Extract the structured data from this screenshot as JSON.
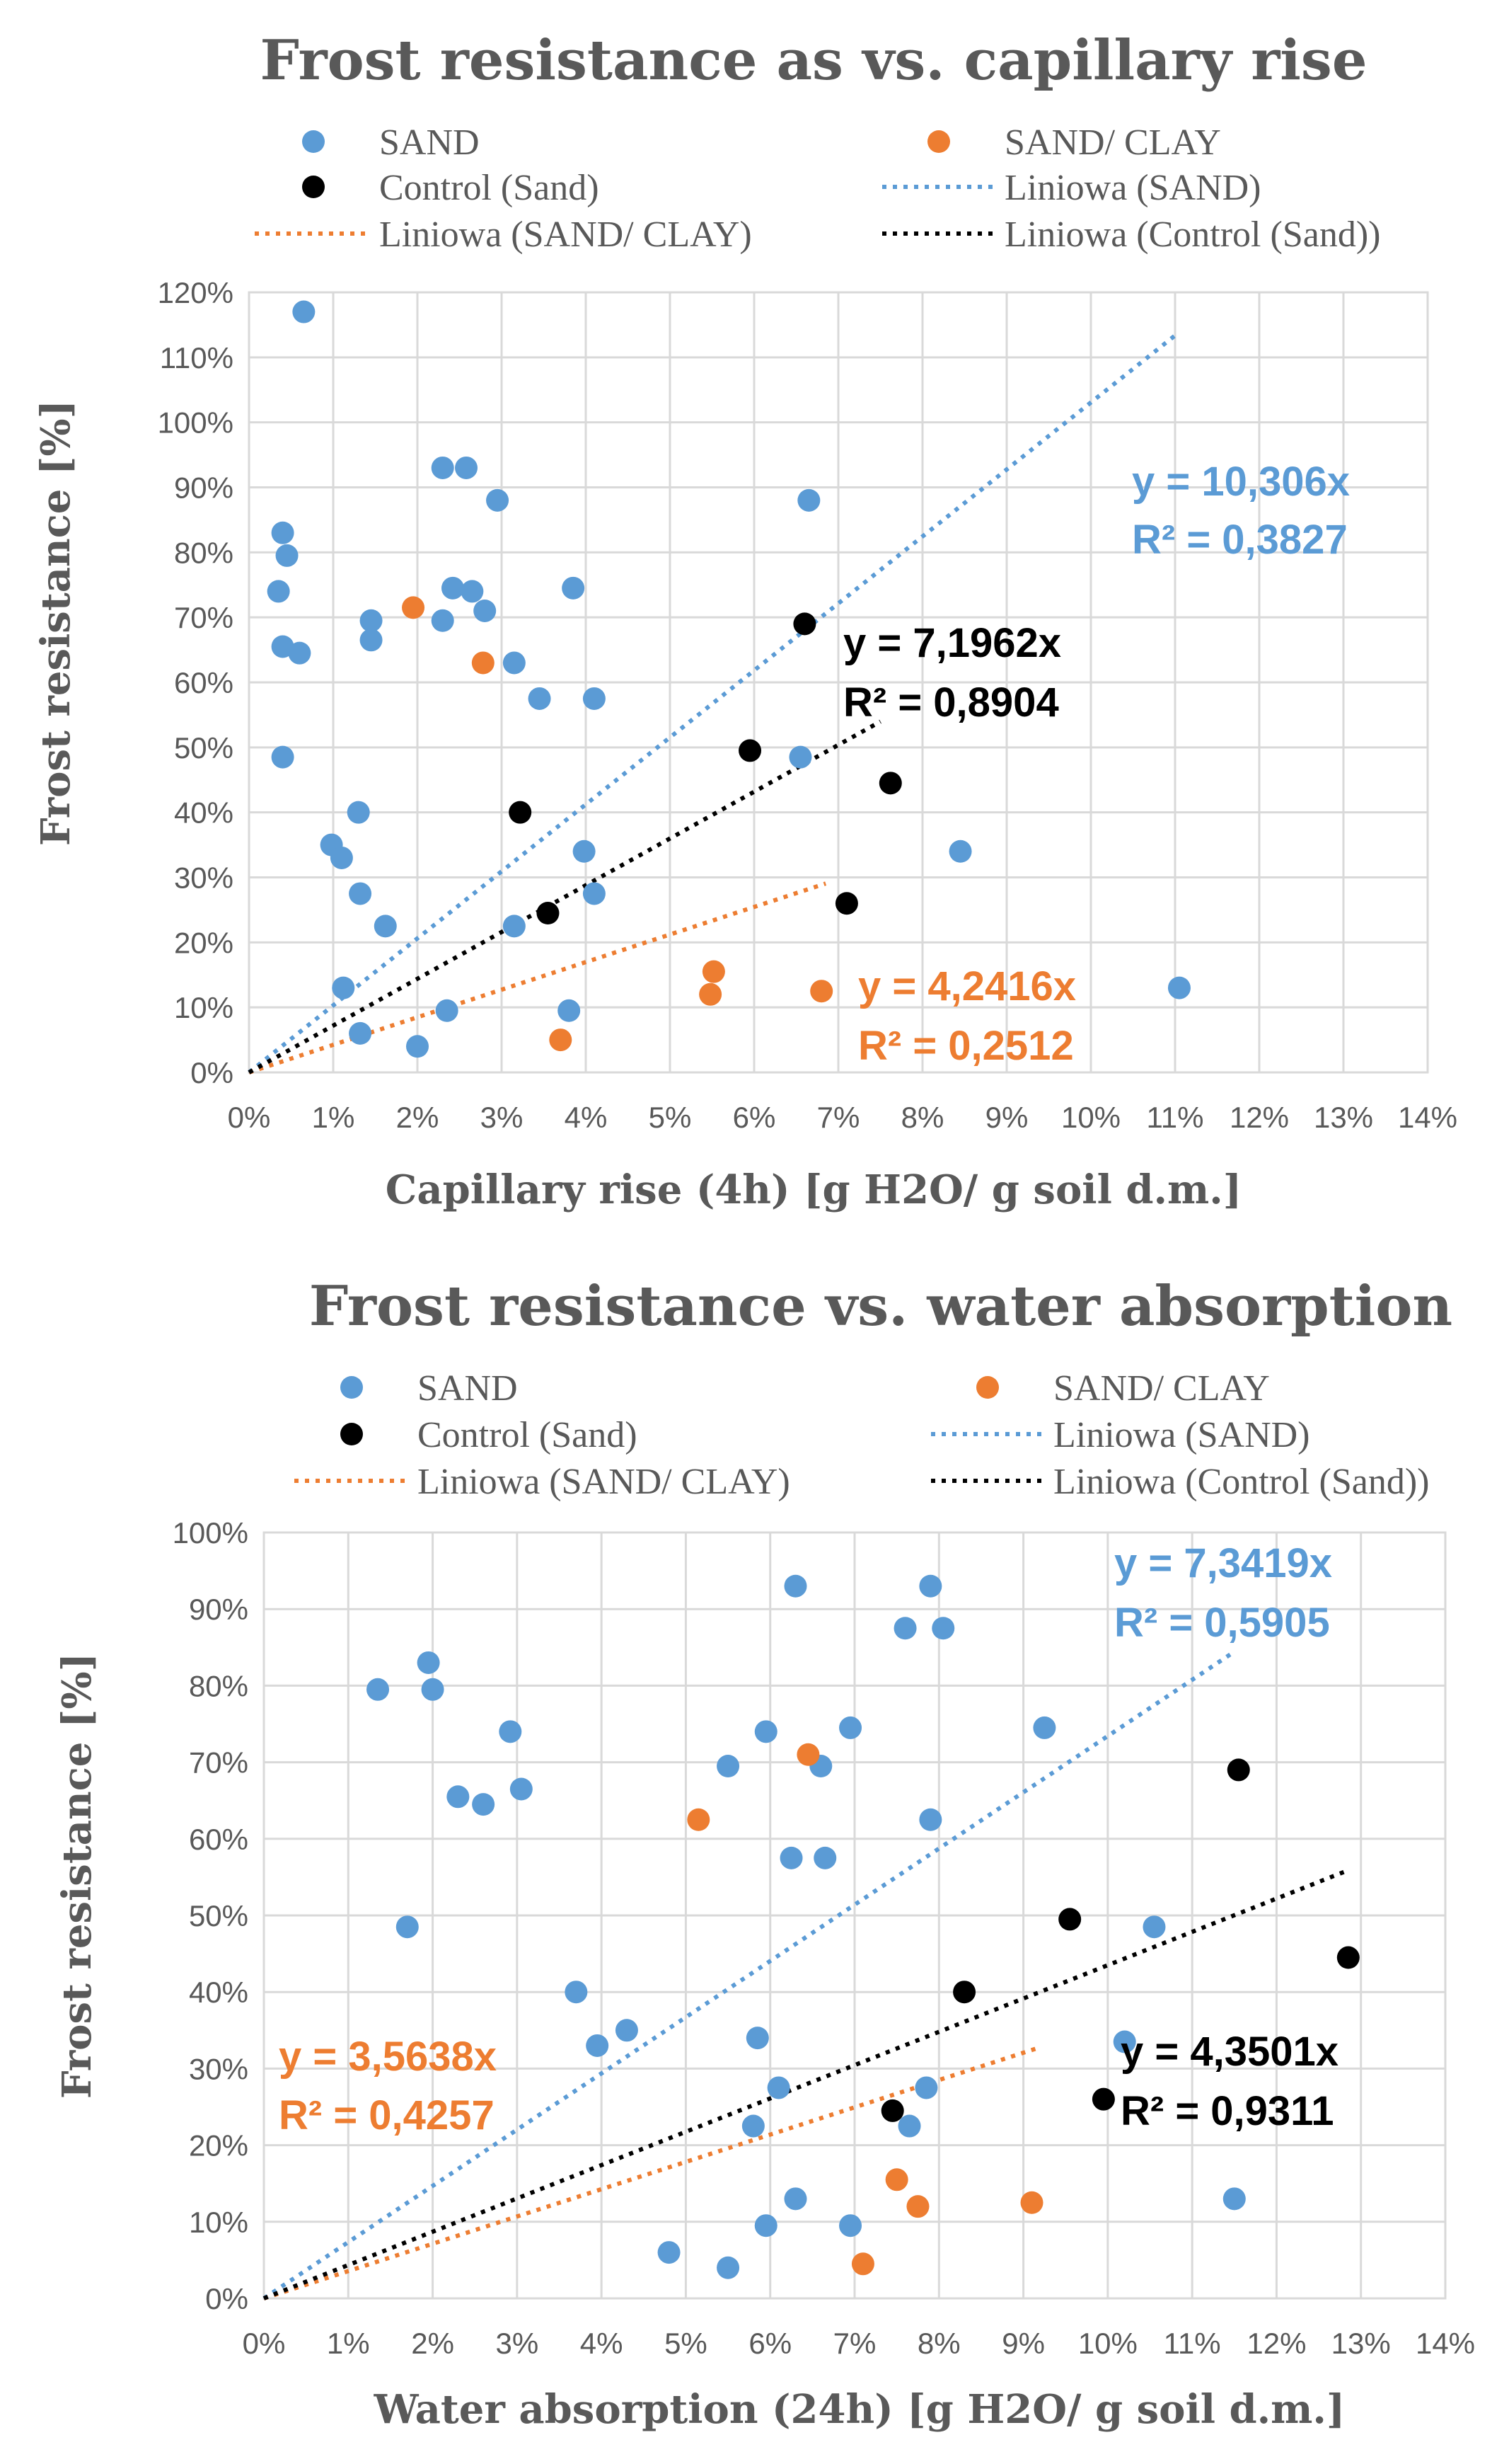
{
  "chart_data": [
    {
      "type": "scatter",
      "title": "Frost resistance as vs. capillary rise",
      "xlabel": "Capillary rise (4h) [g H2O/ g soil d.m.]",
      "ylabel": "Frost resistance [%]",
      "xlim": [
        0,
        14
      ],
      "ylim": [
        0,
        120
      ],
      "x_ticks": [
        "0%",
        "1%",
        "2%",
        "3%",
        "4%",
        "5%",
        "6%",
        "7%",
        "8%",
        "9%",
        "10%",
        "11%",
        "12%",
        "13%",
        "14%"
      ],
      "y_ticks": [
        "0%",
        "10%",
        "20%",
        "30%",
        "40%",
        "50%",
        "60%",
        "70%",
        "80%",
        "90%",
        "100%",
        "110%",
        "120%"
      ],
      "grid": true,
      "legend": [
        {
          "label": "SAND",
          "kind": "marker",
          "color": "#5b9bd5"
        },
        {
          "label": "SAND/ CLAY",
          "kind": "marker",
          "color": "#ed7d31"
        },
        {
          "label": "Control (Sand)",
          "kind": "marker",
          "color": "#000000"
        },
        {
          "label": "Liniowa (SAND)",
          "kind": "line",
          "color": "#5b9bd5"
        },
        {
          "label": "Liniowa (SAND/ CLAY)",
          "kind": "line",
          "color": "#ed7d31"
        },
        {
          "label": "Liniowa (Control (Sand))",
          "kind": "line",
          "color": "#000000"
        }
      ],
      "series": [
        {
          "name": "SAND",
          "color": "#5b9bd5",
          "points": [
            [
              0.65,
              117
            ],
            [
              0.4,
              83
            ],
            [
              0.45,
              79.5
            ],
            [
              0.35,
              74
            ],
            [
              0.4,
              65.5
            ],
            [
              0.6,
              64.5
            ],
            [
              0.4,
              48.5
            ],
            [
              1.45,
              69.5
            ],
            [
              1.45,
              66.5
            ],
            [
              1.3,
              40
            ],
            [
              0.98,
              35
            ],
            [
              1.1,
              33
            ],
            [
              1.32,
              27.5
            ],
            [
              1.62,
              22.5
            ],
            [
              1.12,
              13
            ],
            [
              1.32,
              6
            ],
            [
              2.3,
              93
            ],
            [
              2.58,
              93
            ],
            [
              2.95,
              88
            ],
            [
              2.42,
              74.5
            ],
            [
              2.65,
              74
            ],
            [
              2.8,
              71
            ],
            [
              2.3,
              69.5
            ],
            [
              3.15,
              63
            ],
            [
              3.45,
              57.5
            ],
            [
              3.85,
              74.5
            ],
            [
              4.1,
              57.5
            ],
            [
              3.98,
              34
            ],
            [
              4.1,
              27.5
            ],
            [
              3.15,
              22.5
            ],
            [
              3.8,
              9.5
            ],
            [
              2.35,
              9.5
            ],
            [
              2.0,
              4
            ],
            [
              6.65,
              88
            ],
            [
              6.55,
              48.5
            ],
            [
              8.45,
              34
            ],
            [
              11.05,
              13
            ]
          ]
        },
        {
          "name": "SAND/ CLAY",
          "color": "#ed7d31",
          "points": [
            [
              1.95,
              71.5
            ],
            [
              2.78,
              63
            ],
            [
              5.52,
              15.5
            ],
            [
              5.48,
              12
            ],
            [
              6.8,
              12.5
            ],
            [
              3.7,
              5
            ]
          ]
        },
        {
          "name": "Control (Sand)",
          "color": "#000000",
          "points": [
            [
              6.6,
              69
            ],
            [
              5.95,
              49.5
            ],
            [
              7.62,
              44.5
            ],
            [
              3.22,
              40
            ],
            [
              3.55,
              24.5
            ],
            [
              7.1,
              26
            ]
          ]
        }
      ],
      "trendlines": [
        {
          "name": "Liniowa (SAND)",
          "color": "#5b9bd5",
          "slope": 10.306,
          "x_end": 11.0
        },
        {
          "name": "Liniowa (SAND/ CLAY)",
          "color": "#ed7d31",
          "slope": 4.2416,
          "x_end": 6.85
        },
        {
          "name": "Liniowa (Control (Sand))",
          "color": "#000000",
          "slope": 7.1962,
          "x_end": 7.5
        }
      ],
      "annotations": [
        {
          "id": "sand",
          "color": "#5b9bd5",
          "line1": "y = 10,306x",
          "line2": "R² = 0,3827"
        },
        {
          "id": "control",
          "color": "#000000",
          "line1": "y = 7,1962x",
          "line2": "R² = 0,8904"
        },
        {
          "id": "clay",
          "color": "#ed7d31",
          "line1": "y = 4,2416x",
          "line2": "R² = 0,2512"
        }
      ]
    },
    {
      "type": "scatter",
      "title": "Frost resistance vs. water absorption",
      "xlabel": "Water absorption (24h) [g H2O/ g soil d.m.]",
      "ylabel": "Frost resistance [%]",
      "xlim": [
        0,
        14
      ],
      "ylim": [
        0,
        100
      ],
      "x_ticks": [
        "0%",
        "1%",
        "2%",
        "3%",
        "4%",
        "5%",
        "6%",
        "7%",
        "8%",
        "9%",
        "10%",
        "11%",
        "12%",
        "13%",
        "14%"
      ],
      "y_ticks": [
        "0%",
        "10%",
        "20%",
        "30%",
        "40%",
        "50%",
        "60%",
        "70%",
        "80%",
        "90%",
        "100%"
      ],
      "grid": true,
      "legend": [
        {
          "label": "SAND",
          "kind": "marker",
          "color": "#5b9bd5"
        },
        {
          "label": "SAND/ CLAY",
          "kind": "marker",
          "color": "#ed7d31"
        },
        {
          "label": "Control (Sand)",
          "kind": "marker",
          "color": "#000000"
        },
        {
          "label": "Liniowa (SAND)",
          "kind": "line",
          "color": "#5b9bd5"
        },
        {
          "label": "Liniowa (SAND/ CLAY)",
          "kind": "line",
          "color": "#ed7d31"
        },
        {
          "label": "Liniowa (Control (Sand))",
          "kind": "line",
          "color": "#000000"
        }
      ],
      "series": [
        {
          "name": "SAND",
          "color": "#5b9bd5",
          "points": [
            [
              1.35,
              79.5
            ],
            [
              1.95,
              83
            ],
            [
              2.0,
              79.5
            ],
            [
              2.3,
              65.5
            ],
            [
              2.6,
              64.5
            ],
            [
              2.92,
              74
            ],
            [
              3.05,
              66.5
            ],
            [
              1.7,
              48.5
            ],
            [
              3.7,
              40
            ],
            [
              3.95,
              33
            ],
            [
              4.3,
              35
            ],
            [
              4.8,
              6
            ],
            [
              5.5,
              4
            ],
            [
              5.5,
              69.5
            ],
            [
              5.95,
              74
            ],
            [
              5.85,
              34
            ],
            [
              6.1,
              27.5
            ],
            [
              5.8,
              22.5
            ],
            [
              5.95,
              9.5
            ],
            [
              6.3,
              13
            ],
            [
              6.3,
              93
            ],
            [
              6.25,
              57.5
            ],
            [
              6.6,
              69.5
            ],
            [
              6.65,
              57.5
            ],
            [
              6.95,
              74.5
            ],
            [
              6.95,
              9.5
            ],
            [
              7.6,
              87.5
            ],
            [
              7.9,
              93
            ],
            [
              8.05,
              87.5
            ],
            [
              7.9,
              62.5
            ],
            [
              7.85,
              27.5
            ],
            [
              7.65,
              22.5
            ],
            [
              9.25,
              74.5
            ],
            [
              10.2,
              33.5
            ],
            [
              10.55,
              48.5
            ],
            [
              11.5,
              13
            ]
          ]
        },
        {
          "name": "SAND/ CLAY",
          "color": "#ed7d31",
          "points": [
            [
              6.45,
              71
            ],
            [
              5.15,
              62.5
            ],
            [
              7.5,
              15.5
            ],
            [
              7.75,
              12
            ],
            [
              9.1,
              12.5
            ],
            [
              7.1,
              4.5
            ]
          ]
        },
        {
          "name": "Control (Sand)",
          "color": "#000000",
          "points": [
            [
              11.55,
              69
            ],
            [
              9.55,
              49.5
            ],
            [
              12.85,
              44.5
            ],
            [
              8.3,
              40
            ],
            [
              7.45,
              24.5
            ],
            [
              9.95,
              26
            ]
          ]
        }
      ],
      "trendlines": [
        {
          "name": "Liniowa (SAND)",
          "color": "#5b9bd5",
          "slope": 7.3419,
          "x_end": 11.5
        },
        {
          "name": "Liniowa (SAND/ CLAY)",
          "color": "#ed7d31",
          "slope": 3.5638,
          "x_end": 9.2
        },
        {
          "name": "Liniowa (Control (Sand))",
          "color": "#000000",
          "slope": 4.3501,
          "x_end": 12.85
        }
      ],
      "annotations": [
        {
          "id": "sand",
          "color": "#5b9bd5",
          "line1": "y = 7,3419x",
          "line2": "R² = 0,5905"
        },
        {
          "id": "clay",
          "color": "#ed7d31",
          "line1": "y = 3,5638x",
          "line2": "R² = 0,4257"
        },
        {
          "id": "control",
          "color": "#000000",
          "line1": "y = 4,3501x",
          "line2": "R² = 0,9311"
        }
      ]
    }
  ]
}
